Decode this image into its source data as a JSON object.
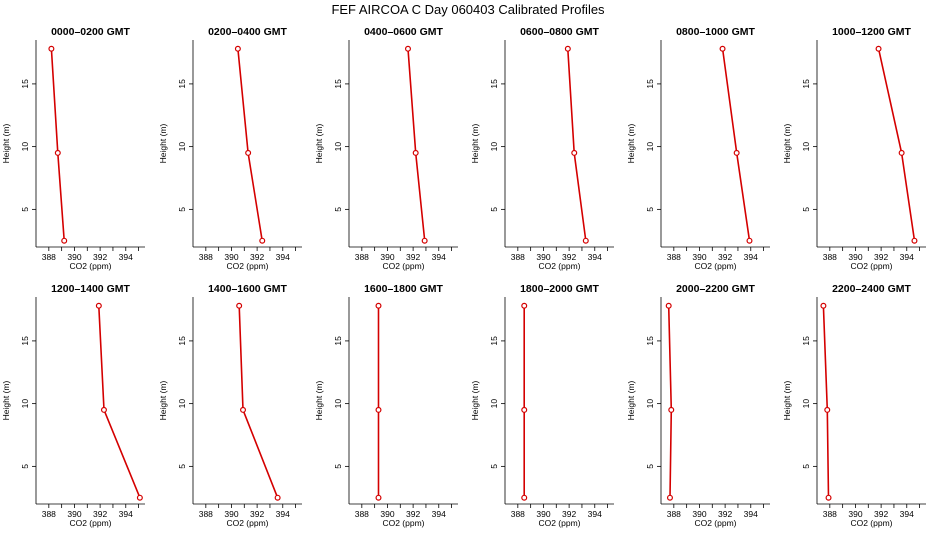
{
  "title": "FEF AIRCOA C  Day 060403  Calibrated Profiles",
  "chart_data": {
    "type": "line",
    "title": "FEF AIRCOA C  Day 060403  Calibrated Profiles",
    "xlabel": "CO2 (ppm)",
    "ylabel": "Height (m)",
    "xlim": [
      387,
      395.5
    ],
    "ylim": [
      2,
      18.5
    ],
    "x_ticks": [
      388,
      390,
      392,
      394
    ],
    "y_ticks": [
      5,
      10,
      15
    ],
    "grid": false,
    "series_color": "#d40000",
    "panels": [
      {
        "title": "0000–0200 GMT",
        "points": [
          {
            "co2": 388.2,
            "height": 17.8
          },
          {
            "co2": 388.7,
            "height": 9.5
          },
          {
            "co2": 389.2,
            "height": 2.5
          }
        ]
      },
      {
        "title": "0200–0400 GMT",
        "points": [
          {
            "co2": 390.5,
            "height": 17.8
          },
          {
            "co2": 391.3,
            "height": 9.5
          },
          {
            "co2": 392.4,
            "height": 2.5
          }
        ]
      },
      {
        "title": "0400–0600 GMT",
        "points": [
          {
            "co2": 391.6,
            "height": 17.8
          },
          {
            "co2": 392.2,
            "height": 9.5
          },
          {
            "co2": 392.9,
            "height": 2.5
          }
        ]
      },
      {
        "title": "0600–0800 GMT",
        "points": [
          {
            "co2": 391.9,
            "height": 17.8
          },
          {
            "co2": 392.4,
            "height": 9.5
          },
          {
            "co2": 393.3,
            "height": 2.5
          }
        ]
      },
      {
        "title": "0800–1000 GMT",
        "points": [
          {
            "co2": 391.8,
            "height": 17.8
          },
          {
            "co2": 392.9,
            "height": 9.5
          },
          {
            "co2": 393.9,
            "height": 2.5
          }
        ]
      },
      {
        "title": "1000–1200 GMT",
        "points": [
          {
            "co2": 391.8,
            "height": 17.8
          },
          {
            "co2": 393.6,
            "height": 9.5
          },
          {
            "co2": 394.6,
            "height": 2.5
          }
        ]
      },
      {
        "title": "1200–1400 GMT",
        "points": [
          {
            "co2": 391.9,
            "height": 17.8
          },
          {
            "co2": 392.3,
            "height": 9.5
          },
          {
            "co2": 395.1,
            "height": 2.5
          }
        ]
      },
      {
        "title": "1400–1600 GMT",
        "points": [
          {
            "co2": 390.6,
            "height": 17.8
          },
          {
            "co2": 390.9,
            "height": 9.5
          },
          {
            "co2": 393.6,
            "height": 2.5
          }
        ]
      },
      {
        "title": "1600–1800 GMT",
        "points": [
          {
            "co2": 389.3,
            "height": 17.8
          },
          {
            "co2": 389.3,
            "height": 9.5
          },
          {
            "co2": 389.3,
            "height": 2.5
          }
        ]
      },
      {
        "title": "1800–2000 GMT",
        "points": [
          {
            "co2": 388.5,
            "height": 17.8
          },
          {
            "co2": 388.5,
            "height": 9.5
          },
          {
            "co2": 388.5,
            "height": 2.5
          }
        ]
      },
      {
        "title": "2000–2200 GMT",
        "points": [
          {
            "co2": 387.6,
            "height": 17.8
          },
          {
            "co2": 387.8,
            "height": 9.5
          },
          {
            "co2": 387.7,
            "height": 2.5
          }
        ]
      },
      {
        "title": "2200–2400 GMT",
        "points": [
          {
            "co2": 387.5,
            "height": 17.8
          },
          {
            "co2": 387.8,
            "height": 9.5
          },
          {
            "co2": 387.9,
            "height": 2.5
          }
        ]
      }
    ]
  }
}
